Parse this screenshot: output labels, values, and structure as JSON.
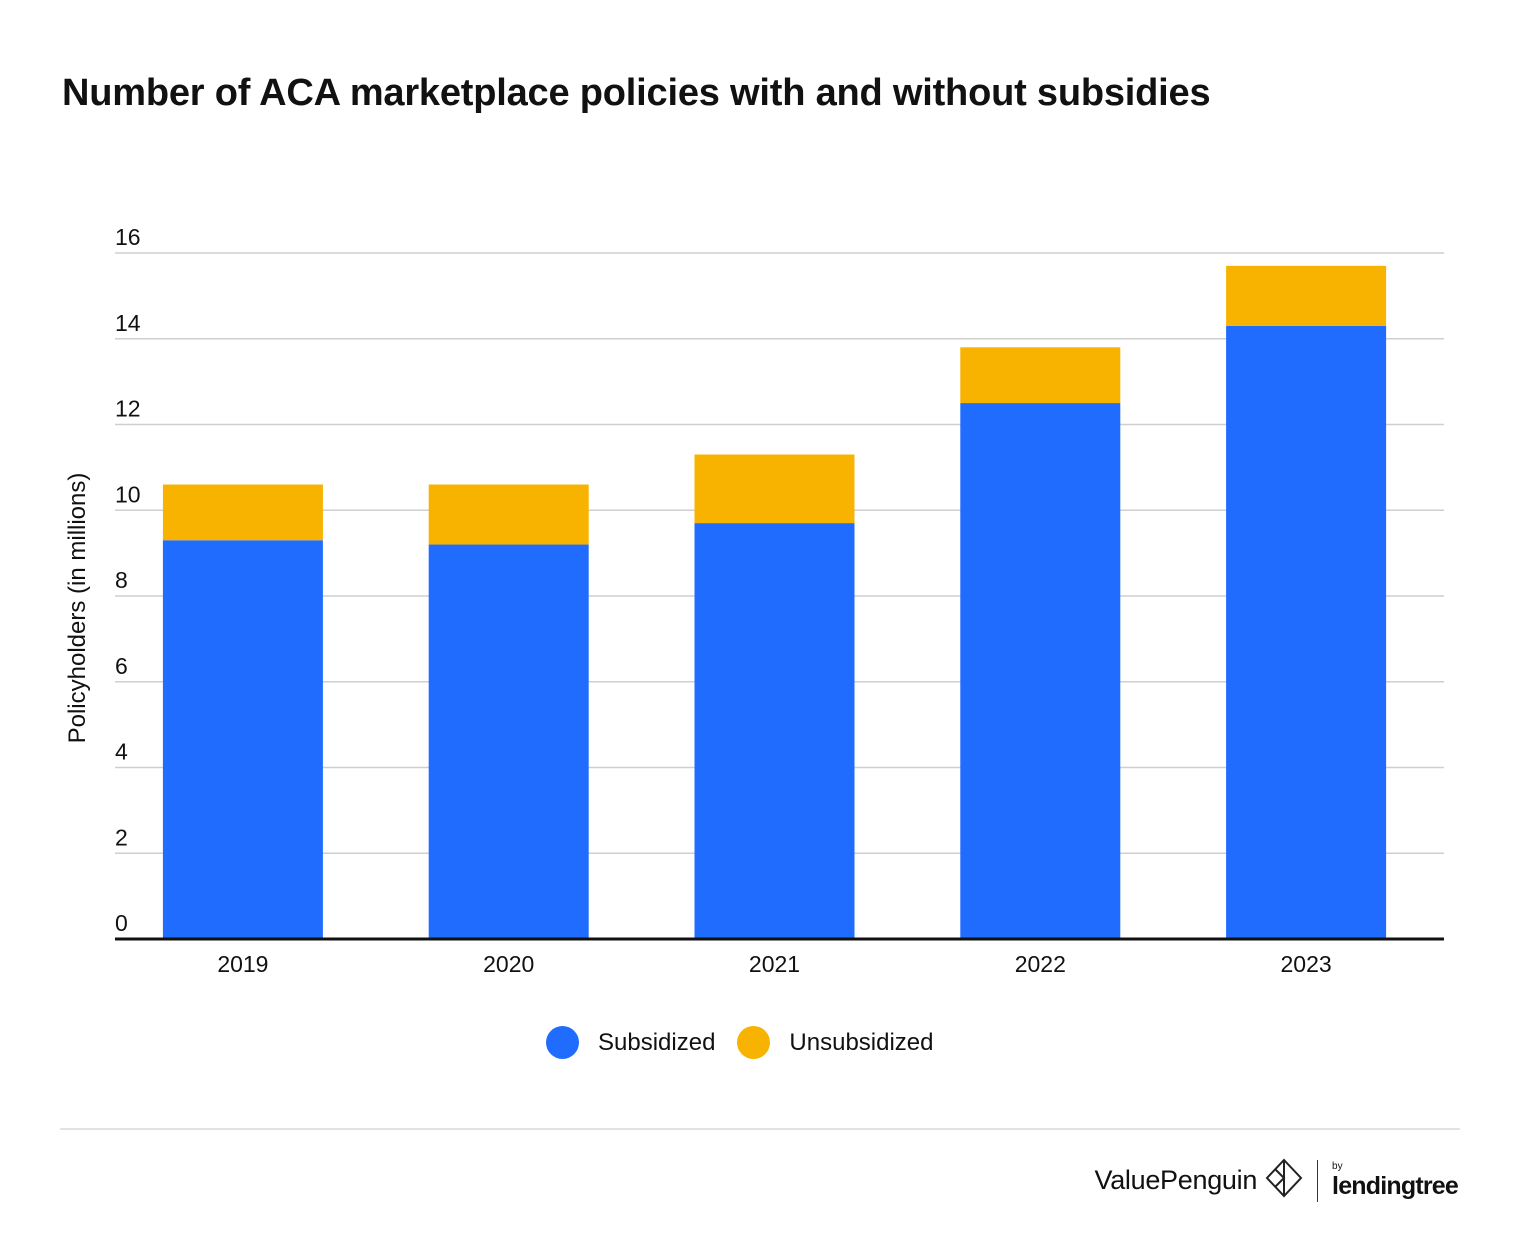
{
  "title": "Number of ACA marketplace policies with and without subsidies",
  "chart_data": {
    "type": "bar",
    "stacked": true,
    "title": "Number of ACA marketplace policies with and without subsidies",
    "xlabel": "",
    "ylabel": "Policyholders (in millions)",
    "categories": [
      "2019",
      "2020",
      "2021",
      "2022",
      "2023"
    ],
    "series": [
      {
        "name": "Subsidized",
        "color": "#206CFF",
        "values": [
          9.3,
          9.2,
          9.7,
          12.5,
          14.3
        ]
      },
      {
        "name": "Unsubsidized",
        "color": "#F8B200",
        "values": [
          1.3,
          1.4,
          1.6,
          1.3,
          1.4
        ]
      }
    ],
    "ylim": [
      0,
      16
    ],
    "yticks": [
      "0",
      "2",
      "4",
      "6",
      "8",
      "10",
      "12",
      "14",
      "16"
    ],
    "grid": true,
    "legend_position": "bottom"
  },
  "legend": [
    {
      "label": "Subsidized",
      "color": "#206CFF"
    },
    {
      "label": "Unsubsidized",
      "color": "#F8B200"
    }
  ],
  "footer": {
    "brand": "ValuePenguin",
    "by": "by",
    "partner": "lendingtree",
    "brand_icon": "valuepenguin-logo-icon"
  }
}
